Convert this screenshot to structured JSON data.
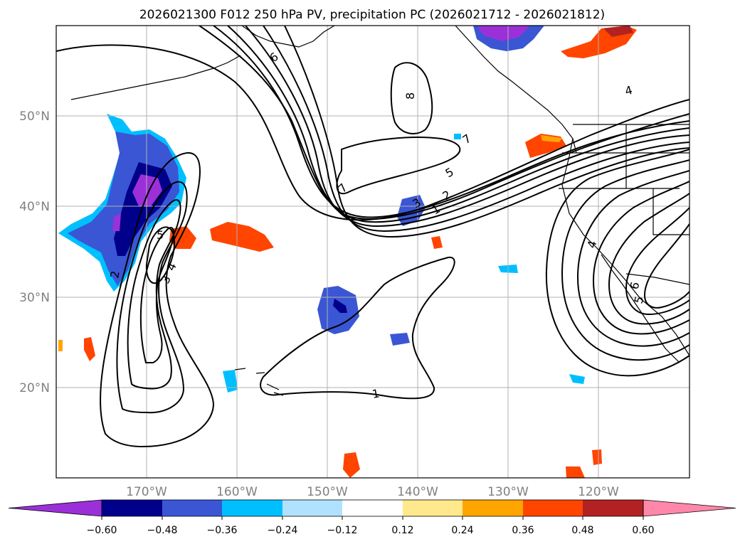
{
  "title": "2026021300 F012 250 hPa PV, precipitation PC (2026021712 - 2026021812)",
  "lat_labels": [
    "50°N",
    "40°N",
    "30°N",
    "20°N"
  ],
  "lon_labels": [
    "170°W",
    "160°W",
    "150°W",
    "140°W",
    "130°W",
    "120°W"
  ],
  "colorbar": {
    "tick_labels": [
      "−0.60",
      "−0.48",
      "−0.36",
      "−0.24",
      "−0.12",
      "0.12",
      "0.24",
      "0.36",
      "0.48",
      "0.60"
    ],
    "colors": [
      "#9b30d9",
      "#00008b",
      "#3a56d4",
      "#00bfff",
      "#b0e2ff",
      "#ffffff",
      "#ffe98c",
      "#ffa500",
      "#ff4500",
      "#b22222",
      "#ff88aa"
    ]
  },
  "contour_labels": [
    "6",
    "8",
    "7",
    "7",
    "5",
    "3",
    "2",
    "1",
    "4",
    "5",
    "3",
    "4",
    "2",
    "1",
    "4",
    "5",
    "6"
  ],
  "colors": {
    "grid": "#b0b0b0",
    "coast": "#000000",
    "contour": "#000000",
    "axis_label": "#808080"
  }
}
